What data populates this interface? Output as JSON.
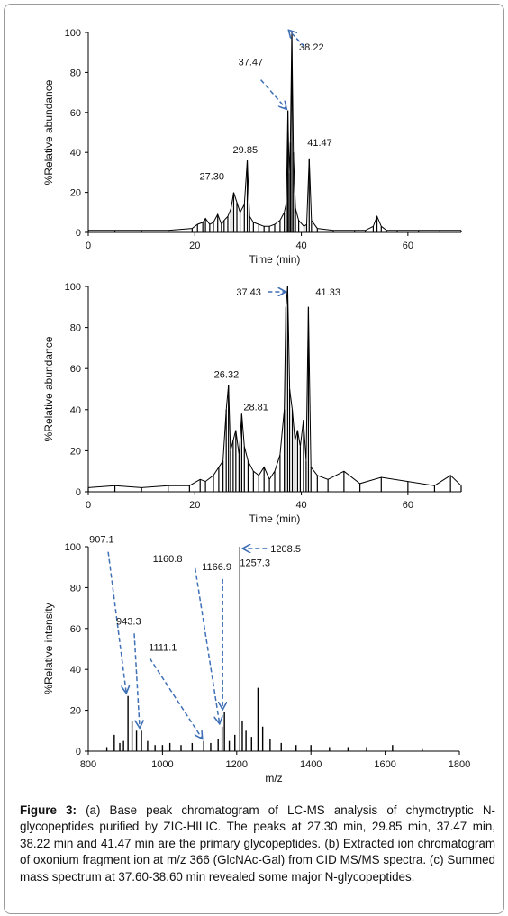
{
  "chart_data": [
    {
      "id": "a",
      "type": "line",
      "title": "",
      "xlabel": "Time (min)",
      "ylabel": "%Relative abundance",
      "xlim": [
        0,
        70
      ],
      "ylim": [
        0,
        100
      ],
      "xticks": [
        "0",
        "20",
        "40",
        "60"
      ],
      "yticks": [
        "0",
        "20",
        "40",
        "60",
        "80",
        "100"
      ],
      "grid": false,
      "series": [
        {
          "x": [
            0,
            5,
            10,
            15,
            19.5,
            20.5,
            21.5,
            22.0,
            22.8,
            23.5,
            24.3,
            25.0,
            25.5,
            26.2,
            26.8,
            27.3,
            27.9,
            28.5,
            29.3,
            29.85,
            30.3,
            31.0,
            32.0,
            33.0,
            34.0,
            35.0,
            36.0,
            36.8,
            37.2,
            37.47,
            37.7,
            37.95,
            38.22,
            38.5,
            38.9,
            39.5,
            40.5,
            41.0,
            41.47,
            41.9,
            43.0,
            46.0,
            50.0,
            52.0,
            53.5,
            54.2,
            55.0,
            56.0,
            58.0,
            62.0,
            66.0,
            70.0
          ],
          "y": [
            1,
            1,
            1,
            1,
            2,
            4,
            5,
            7,
            4,
            5,
            9,
            4,
            6,
            8,
            12,
            20,
            15,
            10,
            14,
            36,
            8,
            5,
            4,
            3,
            3,
            4,
            6,
            10,
            15,
            61,
            30,
            45,
            100,
            40,
            12,
            6,
            3,
            4,
            37,
            6,
            2,
            1,
            1,
            1,
            3,
            8,
            3,
            1,
            1,
            1,
            1,
            1
          ]
        }
      ],
      "annotations": [
        {
          "label": "38.22",
          "x": 38.22,
          "y": 100,
          "arrow": true
        },
        {
          "label": "37.47",
          "x": 37.47,
          "y": 61,
          "arrow": true
        },
        {
          "label": "29.85",
          "x": 29.85,
          "y": 36,
          "arrow": false
        },
        {
          "label": "41.47",
          "x": 41.47,
          "y": 37,
          "arrow": false
        },
        {
          "label": "27.30",
          "x": 27.3,
          "y": 20,
          "arrow": false
        }
      ]
    },
    {
      "id": "b",
      "type": "line",
      "title": "",
      "xlabel": "Time (min)",
      "ylabel": "%Relative abundance",
      "xlim": [
        0,
        70
      ],
      "ylim": [
        0,
        100
      ],
      "xticks": [
        "0",
        "20",
        "40",
        "60"
      ],
      "yticks": [
        "0",
        "20",
        "40",
        "60",
        "80",
        "100"
      ],
      "grid": false,
      "series": [
        {
          "x": [
            0,
            5,
            10,
            15,
            19,
            21,
            22,
            23.5,
            24.5,
            25.3,
            25.9,
            26.32,
            26.7,
            27.2,
            27.7,
            28.3,
            28.81,
            29.3,
            30.0,
            31.0,
            32.0,
            33.0,
            34.0,
            35.0,
            36.0,
            36.8,
            37.1,
            37.43,
            37.8,
            38.3,
            38.8,
            39.3,
            39.8,
            40.4,
            40.9,
            41.33,
            41.8,
            43.0,
            45.0,
            48.0,
            51.0,
            55.0,
            60.0,
            65.0,
            68.0,
            70.0
          ],
          "y": [
            2,
            3,
            2,
            3,
            3,
            6,
            5,
            8,
            12,
            15,
            40,
            52,
            20,
            25,
            30,
            18,
            38,
            22,
            15,
            10,
            8,
            12,
            6,
            10,
            18,
            40,
            90,
            100,
            50,
            40,
            25,
            30,
            22,
            35,
            15,
            90,
            12,
            8,
            6,
            10,
            4,
            7,
            5,
            3,
            8,
            3
          ]
        }
      ],
      "annotations": [
        {
          "label": "37.43",
          "x": 37.43,
          "y": 100,
          "arrow": true
        },
        {
          "label": "41.33",
          "x": 41.33,
          "y": 100,
          "arrow": false
        },
        {
          "label": "26.32",
          "x": 26.32,
          "y": 52,
          "arrow": false
        },
        {
          "label": "28.81",
          "x": 28.81,
          "y": 38,
          "arrow": false
        }
      ]
    },
    {
      "id": "c",
      "type": "bar",
      "title": "",
      "xlabel": "m/z",
      "ylabel": "%Relative intensity",
      "xlim": [
        800,
        1800
      ],
      "ylim": [
        0,
        100
      ],
      "xticks": [
        "800",
        "1000",
        "1200",
        "1400",
        "1600",
        "1800"
      ],
      "yticks": [
        "0",
        "20",
        "40",
        "60",
        "80",
        "100"
      ],
      "grid": false,
      "series": [
        {
          "x": [
            850,
            870,
            885,
            895,
            907.1,
            918,
            930,
            943.3,
            960,
            980,
            1000,
            1020,
            1050,
            1080,
            1111.1,
            1130,
            1150,
            1160.8,
            1166.9,
            1180,
            1195,
            1208.5,
            1215,
            1225,
            1240,
            1257.3,
            1270,
            1290,
            1320,
            1360,
            1400,
            1450,
            1500,
            1550,
            1620,
            1700
          ],
          "y": [
            2,
            8,
            4,
            5,
            27,
            15,
            10,
            10,
            5,
            3,
            3,
            4,
            3,
            4,
            5,
            4,
            6,
            12,
            19,
            5,
            8,
            100,
            15,
            10,
            7,
            31,
            12,
            6,
            4,
            3,
            3,
            2,
            2,
            2,
            3,
            1
          ]
        }
      ],
      "annotations": [
        {
          "label": "1208.5",
          "x": 1208.5,
          "y": 100,
          "arrow": true
        },
        {
          "label": "907.1",
          "x": 907.1,
          "y": 27,
          "arrow": true
        },
        {
          "label": "943.3",
          "x": 943.3,
          "y": 10,
          "arrow": true
        },
        {
          "label": "1111.1",
          "x": 1111.1,
          "y": 5,
          "arrow": true
        },
        {
          "label": "1160.8",
          "x": 1160.8,
          "y": 12,
          "arrow": true
        },
        {
          "label": "1166.9",
          "x": 1166.9,
          "y": 19,
          "arrow": true
        },
        {
          "label": "1257.3",
          "x": 1257.3,
          "y": 31,
          "arrow": false
        }
      ]
    }
  ],
  "caption": {
    "label": "Figure 3:",
    "text": " (a) Base peak chromatogram of LC-MS analysis of chymotryptic N-glycopeptides purified by ZIC-HILIC. The peaks at 27.30 min, 29.85 min, 37.47 min, 38.22 min and 41.47 min are the primary glycopeptides. (b) Extracted ion chromatogram of oxonium fragment ion at m/z 366 (GlcNAc-Gal) from CID MS/MS spectra. (c) Summed mass spectrum at 37.60-38.60 min revealed some major N-glycopeptides."
  },
  "colors": {
    "trace": "#000000",
    "arrow": "#3f6fb5",
    "axis": "#000000"
  }
}
